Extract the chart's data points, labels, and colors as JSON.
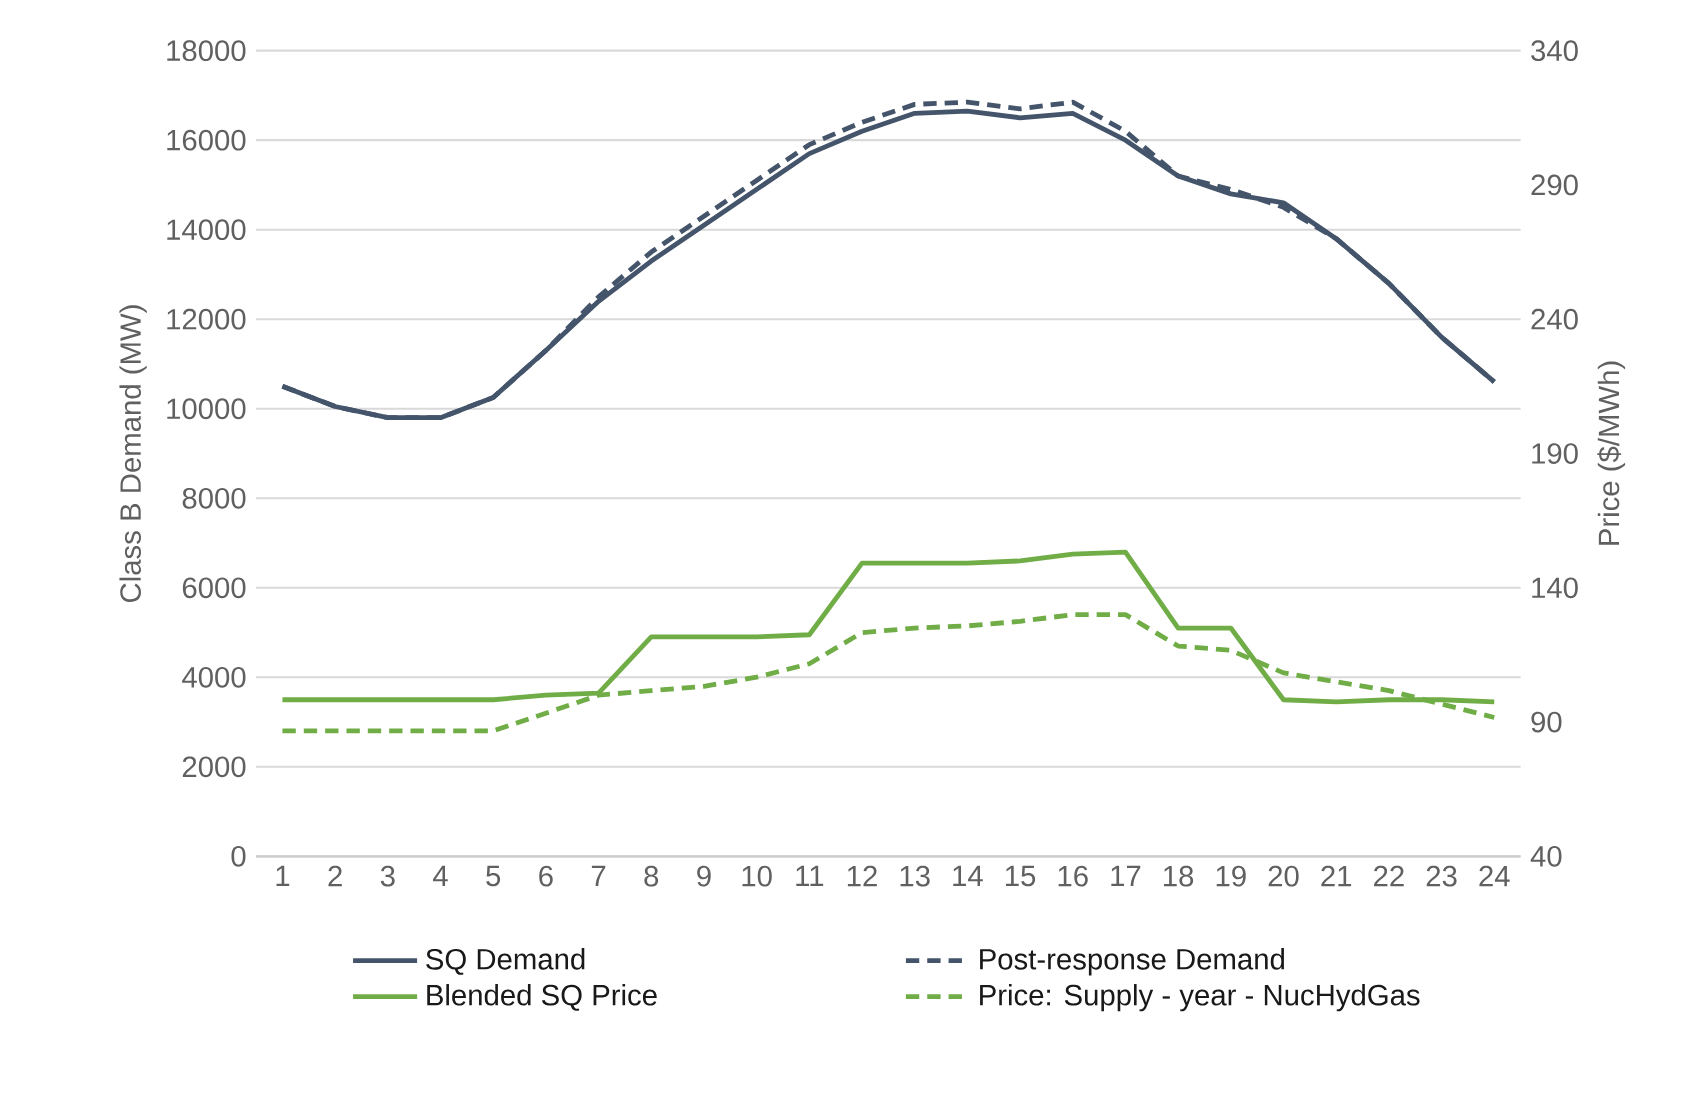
{
  "chart_data": {
    "type": "line",
    "categories": [
      "1",
      "2",
      "3",
      "4",
      "5",
      "6",
      "7",
      "8",
      "9",
      "10",
      "11",
      "12",
      "13",
      "14",
      "15",
      "16",
      "17",
      "18",
      "19",
      "20",
      "21",
      "22",
      "23",
      "24"
    ],
    "ylabel": "Class B Demand (MW)",
    "y2label": "Price ($/MWh)",
    "ylim": [
      0,
      18000
    ],
    "yticks": [
      0,
      2000,
      4000,
      6000,
      8000,
      10000,
      12000,
      14000,
      16000,
      18000
    ],
    "y2lim": [
      40,
      340
    ],
    "y2ticks": [
      40,
      90,
      140,
      190,
      240,
      290,
      340
    ],
    "grid": "y",
    "legend": "bottom",
    "series": [
      {
        "name": "SQ Demand",
        "color": "#44546a",
        "line_style": "solid",
        "values": [
          10500,
          10050,
          9800,
          9800,
          10250,
          11300,
          12400,
          13300,
          14100,
          14900,
          15700,
          16200,
          16600,
          16650,
          16500,
          16600,
          16000,
          15200,
          14800,
          14600,
          13800,
          12800,
          11600,
          10600
        ]
      },
      {
        "name": "Post-response Demand",
        "color": "#44546a",
        "line_style": "dashed",
        "values": [
          10500,
          10050,
          9800,
          9800,
          10250,
          11300,
          12500,
          13500,
          14300,
          15100,
          15900,
          16400,
          16800,
          16850,
          16700,
          16850,
          16200,
          15200,
          14900,
          14500,
          13800,
          12800,
          11600,
          10600
        ]
      },
      {
        "name": "Blended SQ Price",
        "color": "#70ad47",
        "line_style": "solid",
        "axis": "y2",
        "values": [
          98.3,
          98.3,
          98.3,
          98.3,
          98.3,
          100,
          100.8,
          121.7,
          121.7,
          121.7,
          122.5,
          149.2,
          149.2,
          149.2,
          150,
          152.5,
          153.3,
          125,
          125,
          98.3,
          97.5,
          98.3,
          98.3,
          97.5
        ]
      },
      {
        "name": "Price: Supply - year - NucHydGas",
        "color": "#70ad47",
        "line_style": "dashed",
        "axis": "y2",
        "values": [
          86.7,
          86.7,
          86.7,
          86.7,
          86.7,
          93.3,
          100,
          101.7,
          103.3,
          106.7,
          111.7,
          123.3,
          125,
          125.8,
          127.5,
          130,
          130,
          118.3,
          116.7,
          108.3,
          105,
          101.7,
          96.7,
          91.7
        ]
      }
    ]
  }
}
